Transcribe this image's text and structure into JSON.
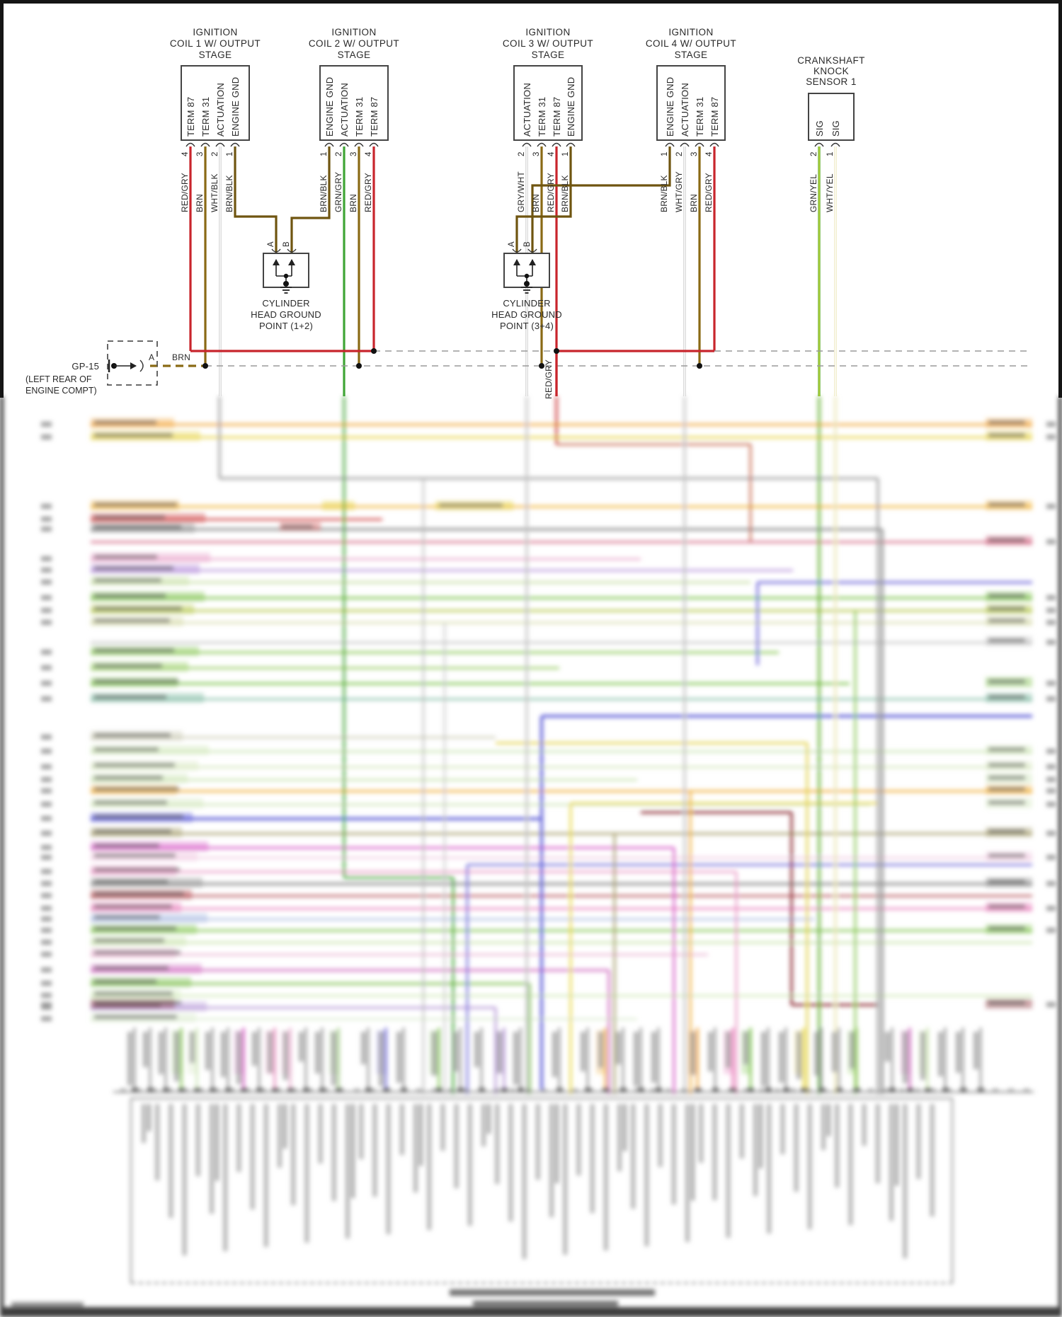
{
  "diagram": {
    "coils": [
      {
        "title_lines": [
          "IGNITION",
          "COIL 1 W/ OUTPUT",
          "STAGE"
        ],
        "pins": [
          {
            "label": "TERM 87",
            "number": "4",
            "wire": "RED/GRY"
          },
          {
            "label": "TERM 31",
            "number": "3",
            "wire": "BRN"
          },
          {
            "label": "ACTUATION",
            "number": "2",
            "wire": "WHT/BLK"
          },
          {
            "label": "ENGINE GND",
            "number": "1",
            "wire": "BRN/BLK"
          }
        ]
      },
      {
        "title_lines": [
          "IGNITION",
          "COIL 2 W/ OUTPUT",
          "STAGE"
        ],
        "pins": [
          {
            "label": "ENGINE GND",
            "number": "1",
            "wire": "BRN/BLK"
          },
          {
            "label": "ACTUATION",
            "number": "2",
            "wire": "GRN/GRY"
          },
          {
            "label": "TERM 31",
            "number": "3",
            "wire": "BRN"
          },
          {
            "label": "TERM 87",
            "number": "4",
            "wire": "RED/GRY"
          }
        ]
      },
      {
        "title_lines": [
          "IGNITION",
          "COIL 3 W/ OUTPUT",
          "STAGE"
        ],
        "pins": [
          {
            "label": "ACTUATION",
            "number": "2",
            "wire": "GRY/WHT"
          },
          {
            "label": "TERM 31",
            "number": "3",
            "wire": "BRN"
          },
          {
            "label": "TERM 87",
            "number": "4",
            "wire": "RED/GRY"
          },
          {
            "label": "ENGINE GND",
            "number": "1",
            "wire": "BRN/BLK"
          }
        ]
      },
      {
        "title_lines": [
          "IGNITION",
          "COIL 4 W/ OUTPUT",
          "STAGE"
        ],
        "pins": [
          {
            "label": "ENGINE GND",
            "number": "1",
            "wire": "BRN/BLK"
          },
          {
            "label": "ACTUATION",
            "number": "2",
            "wire": "WHT/GRY"
          },
          {
            "label": "TERM 31",
            "number": "3",
            "wire": "BRN"
          },
          {
            "label": "TERM 87",
            "number": "4",
            "wire": "RED/GRY"
          }
        ]
      }
    ],
    "knock_sensor": {
      "title_lines": [
        "CRANKSHAFT",
        "KNOCK",
        "SENSOR 1"
      ],
      "pins": [
        {
          "label": "SIG",
          "number": "2",
          "wire": "GRN/YEL"
        },
        {
          "label": "SIG",
          "number": "1",
          "wire": "WHT/YEL"
        }
      ]
    },
    "ground_points": [
      {
        "label_lines": [
          "CYLINDER",
          "HEAD GROUND",
          "POINT (1+2)"
        ],
        "pins": [
          "A",
          "B"
        ]
      },
      {
        "label_lines": [
          "CYLINDER",
          "HEAD GROUND",
          "POINT (3+4)"
        ],
        "pins": [
          "A",
          "B"
        ]
      }
    ],
    "gp15": {
      "name": "GP-15",
      "location_lines": [
        "(LEFT REAR OF",
        "ENGINE COMPT)"
      ],
      "pin": "A",
      "wire": "BRN"
    },
    "junction_labels": {
      "descending_wire": "RED/GRY"
    }
  },
  "wire_colors": {
    "RED/GRY": "#c8252c",
    "BRN": "#8a6a15",
    "WHT/BLK": "#c6c6c6",
    "BRN/BLK": "#6f5510",
    "GRN/GRY": "#3fa535",
    "GRY/WHT": "#c6c6c6",
    "WHT/GRY": "#c6c6c6",
    "GRN/YEL": "#55a81e",
    "WHT/YEL": "#e9e4b0"
  }
}
